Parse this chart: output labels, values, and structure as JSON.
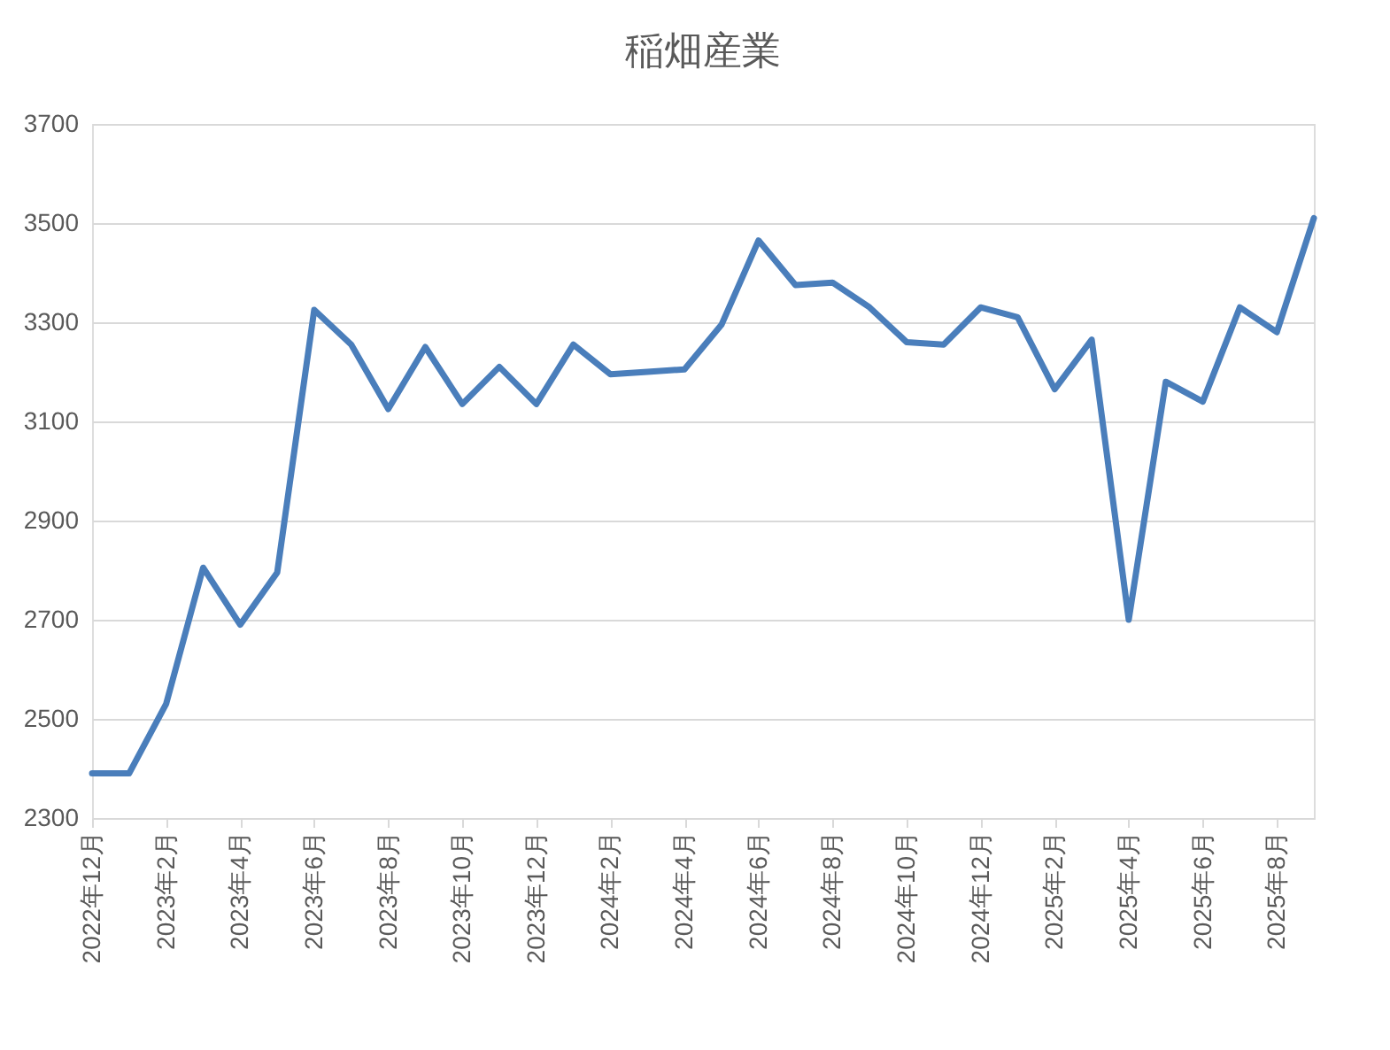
{
  "chart_data": {
    "type": "line",
    "title": "稲畑産業",
    "categories": [
      "2022年12月",
      null,
      "2023年2月",
      null,
      "2023年4月",
      null,
      "2023年6月",
      null,
      "2023年8月",
      null,
      "2023年10月",
      null,
      "2023年12月",
      null,
      "2024年2月",
      null,
      "2024年4月",
      null,
      "2024年6月",
      null,
      "2024年8月",
      null,
      "2024年10月",
      null,
      "2024年12月",
      null,
      "2025年2月",
      null,
      "2025年4月",
      null,
      "2025年6月",
      null,
      "2025年8月",
      null
    ],
    "series": [
      {
        "color": "#4a7ebb",
        "values": [
          2390,
          2390,
          2530,
          2805,
          2690,
          2795,
          3325,
          3255,
          3125,
          3250,
          3135,
          3210,
          3135,
          3255,
          3195,
          3200,
          3205,
          3295,
          3465,
          3375,
          3380,
          3330,
          3260,
          3255,
          3330,
          3310,
          3165,
          3265,
          2700,
          3180,
          3140,
          3330,
          3280,
          3510
        ]
      }
    ],
    "ylim": [
      2300,
      3700
    ],
    "yticks": [
      2300,
      2500,
      2700,
      2900,
      3100,
      3300,
      3500,
      3700
    ],
    "grid": "y",
    "legend": false,
    "marker": "none",
    "line_style": "solid"
  }
}
